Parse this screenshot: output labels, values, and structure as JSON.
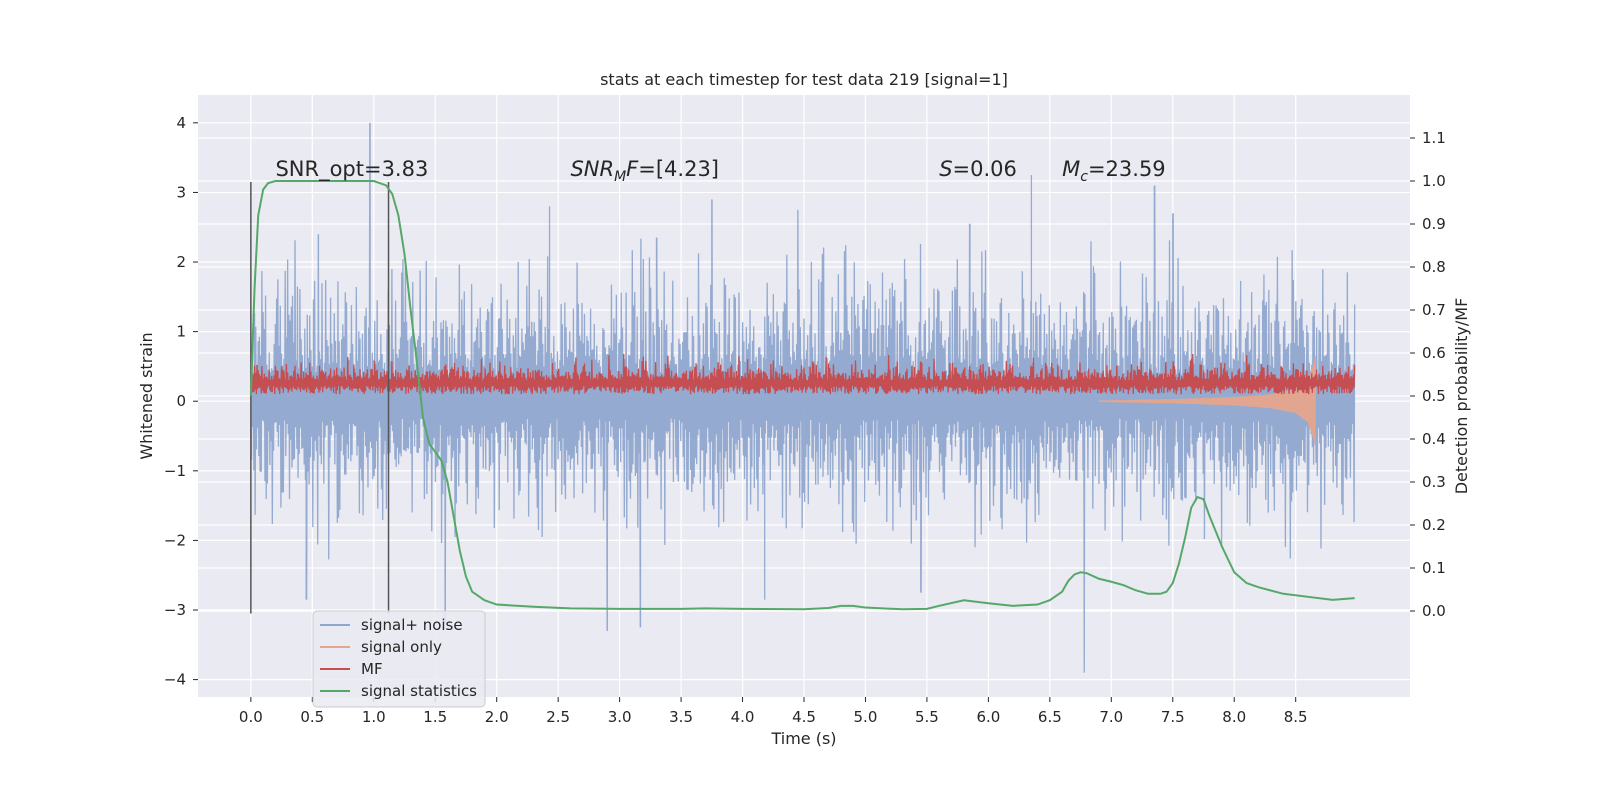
{
  "chart_data": {
    "type": "line",
    "title": "stats at each timestep for test data 219 [signal=1]",
    "xlabel": "Time (s)",
    "ylabel": "Whitened strain",
    "ylabel_right": "Detection probability/MF",
    "xlim": [
      -0.43,
      9.43
    ],
    "ylim": [
      -4.25,
      4.4
    ],
    "ylim_right": [
      -0.2,
      1.2
    ],
    "xticks": [
      0.0,
      0.5,
      1.0,
      1.5,
      2.0,
      2.5,
      3.0,
      3.5,
      4.0,
      4.5,
      5.0,
      5.5,
      6.0,
      6.5,
      7.0,
      7.5,
      8.0,
      8.5
    ],
    "xtick_labels": [
      "0.0",
      "0.5",
      "1.0",
      "1.5",
      "2.0",
      "2.5",
      "3.0",
      "3.5",
      "4.0",
      "4.5",
      "5.0",
      "5.5",
      "6.0",
      "6.5",
      "7.0",
      "7.5",
      "8.0",
      "8.5"
    ],
    "yticks": [
      -4,
      -3,
      -2,
      -1,
      0,
      1,
      2,
      3,
      4
    ],
    "ytick_labels": [
      "−4",
      "−3",
      "−2",
      "−1",
      "0",
      "1",
      "2",
      "3",
      "4"
    ],
    "yticks_right": [
      0.0,
      0.1,
      0.2,
      0.3,
      0.4,
      0.5,
      0.6,
      0.7,
      0.8,
      0.9,
      1.0,
      1.1
    ],
    "ytick_labels_right": [
      "0.0",
      "0.1",
      "0.2",
      "0.3",
      "0.4",
      "0.5",
      "0.6",
      "0.7",
      "0.8",
      "0.9",
      "1.0",
      "1.1"
    ],
    "grid": true,
    "legend_position": "lower-left",
    "colors": {
      "background": "#eaeaf2",
      "grid": "#ffffff",
      "noise": "#8fa6cd",
      "signal_only": "#e2a690",
      "mf": "#c44e52",
      "statistics": "#55a868",
      "vline": "#555555"
    },
    "annotations": [
      {
        "id": "snr_opt",
        "text": "SNR_opt=3.83",
        "x": 0.2,
        "y": 3.15
      },
      {
        "id": "snr_mf",
        "text": "SNR",
        "sub": "M",
        "suffix": "F=[4.23]",
        "x": 2.6,
        "y": 3.15
      },
      {
        "id": "s",
        "text": "S",
        "suffix": "=0.06",
        "x": 5.6,
        "y": 3.15
      },
      {
        "id": "mc",
        "text": "M",
        "sub": "c",
        "suffix": "=23.59",
        "x": 6.6,
        "y": 3.15
      }
    ],
    "vlines": [
      {
        "x": 0.0,
        "y0": -3.05,
        "y1": 3.15
      },
      {
        "x": 1.12,
        "y0": -3.05,
        "y1": 3.15
      }
    ],
    "series": [
      {
        "name": "signal+ noise",
        "role": "noise",
        "x_range": [
          0.0,
          8.98
        ],
        "n_points": 1800,
        "envelope": {
          "upper_typical": [
            1.3,
            2.0
          ],
          "lower_typical": [
            -1.0,
            -2.0
          ],
          "upper_peaks": [
            {
              "x": 0.97,
              "y": 4.0
            },
            {
              "x": 0.55,
              "y": 2.4
            },
            {
              "x": 2.43,
              "y": 2.8
            },
            {
              "x": 3.3,
              "y": 2.35
            },
            {
              "x": 3.75,
              "y": 2.9
            },
            {
              "x": 4.45,
              "y": 2.75
            },
            {
              "x": 5.85,
              "y": 2.55
            },
            {
              "x": 6.35,
              "y": 3.25
            },
            {
              "x": 7.35,
              "y": 3.1
            },
            {
              "x": 7.5,
              "y": 2.7
            }
          ],
          "lower_peaks": [
            {
              "x": 0.45,
              "y": -2.85
            },
            {
              "x": 2.9,
              "y": -3.3
            },
            {
              "x": 3.17,
              "y": -3.25
            },
            {
              "x": 1.58,
              "y": -3.2
            },
            {
              "x": 6.78,
              "y": -3.9
            },
            {
              "x": 5.45,
              "y": -2.75
            },
            {
              "x": 4.18,
              "y": -2.85
            }
          ]
        }
      },
      {
        "name": "signal only",
        "role": "signal_only",
        "x": [
          6.9,
          7.5,
          8.0,
          8.3,
          8.5,
          8.6,
          8.65,
          8.66
        ],
        "amplitude": [
          0.01,
          0.03,
          0.06,
          0.1,
          0.17,
          0.3,
          0.55,
          0.65
        ]
      },
      {
        "name": "MF",
        "role": "mf",
        "x_range": [
          0.0,
          8.98
        ],
        "base": 0.1,
        "typical_top": 0.55,
        "max_top": 0.68
      },
      {
        "name": "signal statistics",
        "role": "statistics",
        "axis": "right",
        "x": [
          0.0,
          0.03,
          0.06,
          0.1,
          0.14,
          0.2,
          0.3,
          0.5,
          0.7,
          0.9,
          1.0,
          1.05,
          1.1,
          1.15,
          1.2,
          1.25,
          1.3,
          1.35,
          1.4,
          1.45,
          1.5,
          1.55,
          1.6,
          1.65,
          1.7,
          1.75,
          1.8,
          1.9,
          2.0,
          2.3,
          2.6,
          3.0,
          3.5,
          3.7,
          4.0,
          4.5,
          4.7,
          4.8,
          4.9,
          5.0,
          5.3,
          5.5,
          5.6,
          5.8,
          6.0,
          6.2,
          6.4,
          6.5,
          6.6,
          6.65,
          6.7,
          6.75,
          6.8,
          6.9,
          7.0,
          7.1,
          7.2,
          7.3,
          7.4,
          7.45,
          7.5,
          7.55,
          7.6,
          7.65,
          7.7,
          7.75,
          7.8,
          7.9,
          8.0,
          8.1,
          8.2,
          8.4,
          8.6,
          8.8,
          8.98
        ],
        "y": [
          0.5,
          0.75,
          0.92,
          0.98,
          0.995,
          1.0,
          1.0,
          1.0,
          1.0,
          1.0,
          1.0,
          0.995,
          0.99,
          0.97,
          0.92,
          0.83,
          0.7,
          0.58,
          0.45,
          0.39,
          0.37,
          0.35,
          0.3,
          0.22,
          0.14,
          0.08,
          0.045,
          0.025,
          0.015,
          0.01,
          0.006,
          0.005,
          0.005,
          0.006,
          0.005,
          0.004,
          0.007,
          0.012,
          0.012,
          0.008,
          0.004,
          0.005,
          0.012,
          0.025,
          0.018,
          0.012,
          0.015,
          0.025,
          0.045,
          0.07,
          0.085,
          0.09,
          0.088,
          0.075,
          0.068,
          0.06,
          0.048,
          0.04,
          0.04,
          0.045,
          0.065,
          0.11,
          0.17,
          0.24,
          0.265,
          0.26,
          0.22,
          0.15,
          0.09,
          0.065,
          0.055,
          0.04,
          0.033,
          0.026,
          0.03
        ]
      }
    ]
  }
}
